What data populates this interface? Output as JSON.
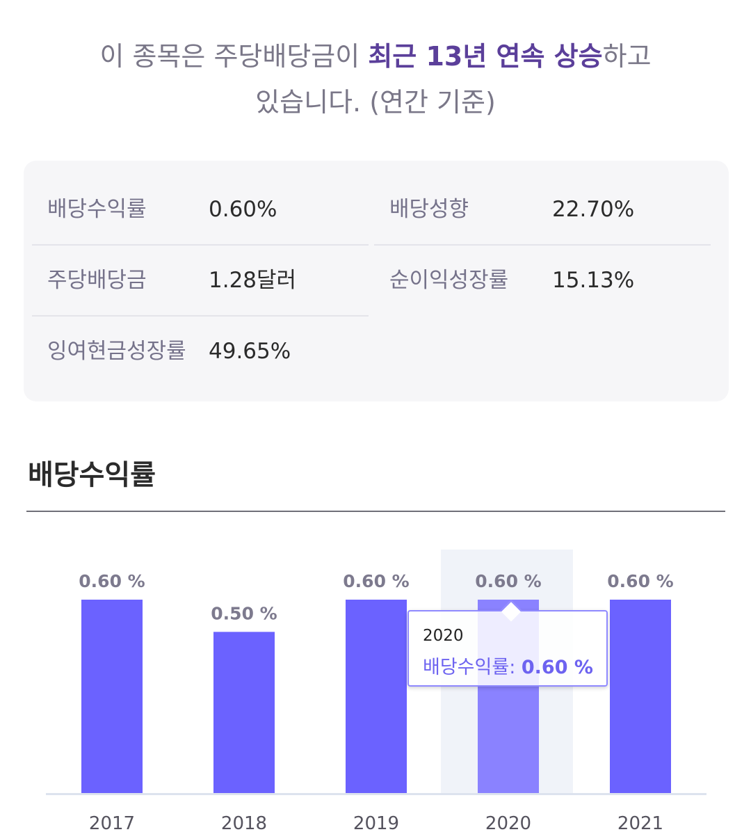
{
  "headline": {
    "line1_pre": "이 종목은 주당배당금이 ",
    "line1_highlight": "최근 13년 연속 상승",
    "line1_post": "하고",
    "line2": "있습니다. (연간 기준)"
  },
  "stats": [
    {
      "label": "배당수익률",
      "value": "0.60%"
    },
    {
      "label": "배당성향",
      "value": "22.70%"
    },
    {
      "label": "주당배당금",
      "value": "1.28달러"
    },
    {
      "label": "순이익성장률",
      "value": "15.13%"
    },
    {
      "label": "잉여현금성장률",
      "value": "49.65%"
    }
  ],
  "section": {
    "title": "배당수익률"
  },
  "tooltip": {
    "year": "2020",
    "series_label": "배당수익률:",
    "value": "0.60 %"
  },
  "colors": {
    "bar": "#6b62ff",
    "bar_highlight": "#8a82ff",
    "highlight_band": "#f0f3f9",
    "label": "#7d7a8e"
  },
  "chart_data": {
    "type": "bar",
    "categories": [
      "2017",
      "2018",
      "2019",
      "2020",
      "2021"
    ],
    "series": [
      {
        "name": "배당수익률",
        "values": [
          0.6,
          0.5,
          0.6,
          0.6,
          0.6
        ]
      }
    ],
    "value_suffix": " %",
    "highlighted_category": "2020",
    "ylim": [
      0,
      0.6
    ],
    "grid": false,
    "legend": "none"
  }
}
